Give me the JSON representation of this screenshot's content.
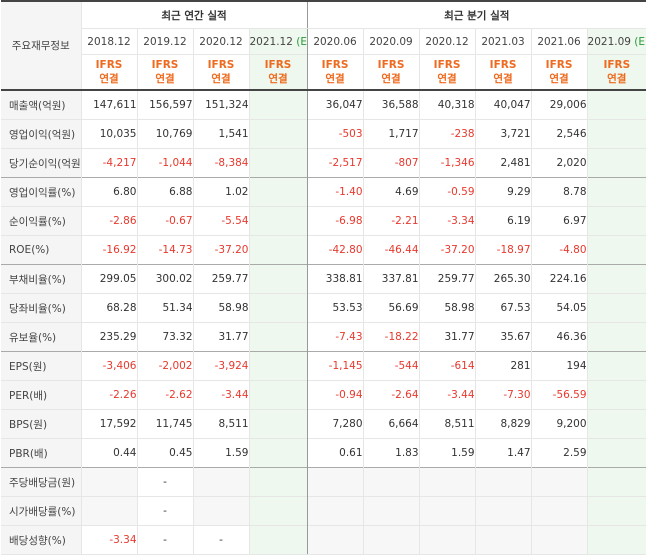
{
  "table": {
    "corner_label": "주요재무정보",
    "groups": {
      "annual": "최근 연간 실적",
      "quarterly": "최근 분기 실적"
    },
    "periods": [
      "2018.12",
      "2019.12",
      "2020.12",
      "2021.12",
      "2020.06",
      "2020.09",
      "2020.12",
      "2021.03",
      "2021.06",
      "2021.09"
    ],
    "estimate_mark": "(E)",
    "ifrs_line1": "IFRS",
    "ifrs_line2": "연결",
    "rows": [
      {
        "label": "매출액(억원)",
        "values": [
          "147,611",
          "156,597",
          "151,324",
          "",
          "36,047",
          "36,588",
          "40,318",
          "40,047",
          "29,006",
          ""
        ]
      },
      {
        "label": "영업이익(억원)",
        "values": [
          "10,035",
          "10,769",
          "1,541",
          "",
          "-503",
          "1,717",
          "-238",
          "3,721",
          "2,546",
          ""
        ]
      },
      {
        "label": "당기순이익(억원)",
        "values": [
          "-4,217",
          "-1,044",
          "-8,384",
          "",
          "-2,517",
          "-807",
          "-1,346",
          "2,481",
          "2,020",
          ""
        ]
      },
      {
        "label": "영업이익률(%)",
        "values": [
          "6.80",
          "6.88",
          "1.02",
          "",
          "-1.40",
          "4.69",
          "-0.59",
          "9.29",
          "8.78",
          ""
        ]
      },
      {
        "label": "순이익률(%)",
        "values": [
          "-2.86",
          "-0.67",
          "-5.54",
          "",
          "-6.98",
          "-2.21",
          "-3.34",
          "6.19",
          "6.97",
          ""
        ]
      },
      {
        "label": "ROE(%)",
        "values": [
          "-16.92",
          "-14.73",
          "-37.20",
          "",
          "-42.80",
          "-46.44",
          "-37.20",
          "-18.97",
          "-4.80",
          ""
        ]
      },
      {
        "label": "부채비율(%)",
        "values": [
          "299.05",
          "300.02",
          "259.77",
          "",
          "338.81",
          "337.81",
          "259.77",
          "265.30",
          "224.16",
          ""
        ]
      },
      {
        "label": "당좌비율(%)",
        "values": [
          "68.28",
          "51.34",
          "58.98",
          "",
          "53.53",
          "56.69",
          "58.98",
          "67.53",
          "54.05",
          ""
        ]
      },
      {
        "label": "유보율(%)",
        "values": [
          "235.29",
          "73.32",
          "31.77",
          "",
          "-7.43",
          "-18.22",
          "31.77",
          "35.67",
          "46.36",
          ""
        ]
      },
      {
        "label": "EPS(원)",
        "values": [
          "-3,406",
          "-2,002",
          "-3,924",
          "",
          "-1,145",
          "-544",
          "-614",
          "281",
          "194",
          ""
        ]
      },
      {
        "label": "PER(배)",
        "values": [
          "-2.26",
          "-2.62",
          "-3.44",
          "",
          "-0.94",
          "-2.64",
          "-3.44",
          "-7.30",
          "-56.59",
          ""
        ]
      },
      {
        "label": "BPS(원)",
        "values": [
          "17,592",
          "11,745",
          "8,511",
          "",
          "7,280",
          "6,664",
          "8,511",
          "8,829",
          "9,200",
          ""
        ]
      },
      {
        "label": "PBR(배)",
        "values": [
          "0.44",
          "0.45",
          "1.59",
          "",
          "0.61",
          "1.83",
          "1.59",
          "1.47",
          "2.59",
          ""
        ]
      },
      {
        "label": "주당배당금(원)",
        "values": [
          "",
          "-",
          "",
          "",
          "",
          "",
          "",
          "",
          "",
          ""
        ]
      },
      {
        "label": "시가배당률(%)",
        "values": [
          "",
          "-",
          "",
          "",
          "",
          "",
          "",
          "",
          "",
          ""
        ]
      },
      {
        "label": "배당성향(%)",
        "values": [
          "-3.34",
          "-",
          "-",
          "",
          "",
          "",
          "",
          "",
          "",
          ""
        ]
      }
    ]
  }
}
